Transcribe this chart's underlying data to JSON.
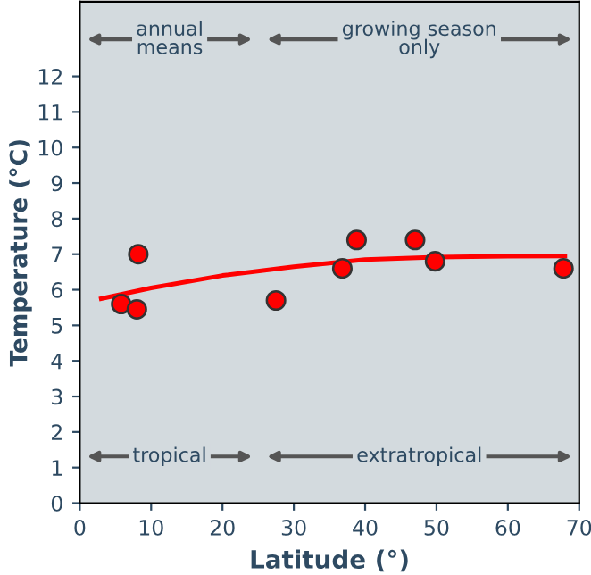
{
  "chart_data": {
    "type": "scatter",
    "xlabel": "Latitude (°)",
    "ylabel": "Temperature (°C)",
    "xlim": [
      0,
      70
    ],
    "ylim": [
      0,
      14.1
    ],
    "xticks": [
      0,
      10,
      20,
      30,
      40,
      50,
      60,
      70
    ],
    "yticks": [
      0,
      1,
      2,
      3,
      4,
      5,
      6,
      7,
      8,
      9,
      10,
      11,
      12
    ],
    "grid": false,
    "legend": false,
    "series": [
      {
        "color": "#ff0000",
        "marker": "circle",
        "x": [
          5.8,
          8,
          8.2,
          27.5,
          36.8,
          38.8,
          47,
          49.8,
          67.8
        ],
        "values": [
          5.6,
          5.45,
          7.0,
          5.7,
          6.6,
          7.4,
          7.4,
          6.8,
          6.6
        ]
      },
      {
        "type": "line",
        "color": "#ff0000",
        "line_style": "solid",
        "x": [
          3,
          10,
          20,
          30,
          40,
          50,
          60,
          68
        ],
        "values": [
          5.75,
          6.05,
          6.4,
          6.65,
          6.85,
          6.92,
          6.94,
          6.95
        ]
      }
    ],
    "annotations": [
      "annual\nmeans",
      "growing season\nonly",
      "tropical",
      "extratropical"
    ]
  }
}
